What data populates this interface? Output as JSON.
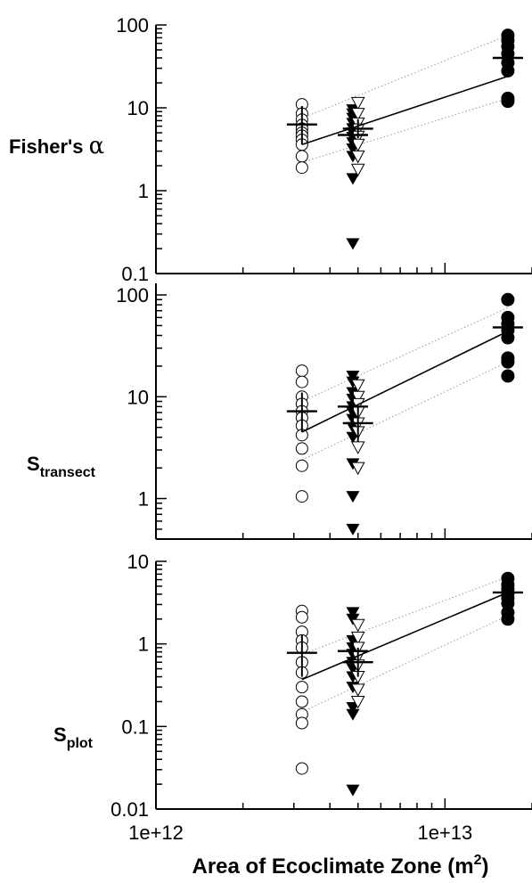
{
  "figure": {
    "xlabel": "Area of Ecoclimate Zone (m",
    "xlabel_sup": "2",
    "xlabel_close": ")"
  },
  "chart_data": [
    {
      "type": "scatter",
      "panel": "top",
      "ylabel": {
        "main": "Fisher's ",
        "greek": "α",
        "sub": ""
      },
      "xscale": "log",
      "yscale": "log",
      "xlim": [
        1000000000000.0,
        20000000000000.0
      ],
      "ylim": [
        0.1,
        100
      ],
      "yticks": [
        {
          "v": 0.1,
          "label": "0.1"
        },
        {
          "v": 1,
          "label": "1"
        },
        {
          "v": 10,
          "label": "10"
        },
        {
          "v": 100,
          "label": "100"
        }
      ],
      "groups": [
        {
          "marker": "open-circle",
          "x": 3200000000000.0,
          "values": [
            11,
            8.5,
            7.2,
            6.2,
            5.6,
            5,
            4.6,
            4.1,
            3.6,
            2.6,
            1.9
          ],
          "mean": 6.3,
          "ci": [
            3.6,
            10.5
          ]
        },
        {
          "marker": "filled-triangle",
          "x": 4800000000000.0,
          "values": [
            9.5,
            8.5,
            7.5,
            6.5,
            5.6,
            5,
            4.4,
            3.8,
            3.2,
            2.6,
            1.4,
            0.23
          ],
          "mean": 4.7,
          "ci": [
            3.6,
            6.4
          ]
        },
        {
          "marker": "open-triangle",
          "x": 5000000000000.0,
          "values": [
            11.5,
            8.5,
            6.5,
            5.5,
            4.5,
            3.6,
            2.6,
            1.8
          ],
          "mean": 5.6,
          "ci": [
            4.3,
            7.3
          ]
        },
        {
          "marker": "filled-circle",
          "x": 16500000000000.0,
          "values": [
            75,
            65,
            55,
            45,
            35,
            28,
            13,
            12
          ],
          "mean": 40,
          "ci": [
            24,
            68
          ]
        }
      ],
      "fit": {
        "x": [
          3200000000000.0,
          16500000000000.0
        ],
        "y": [
          3.6,
          24
        ]
      },
      "conf": [
        {
          "x": [
            3200000000000.0,
            16500000000000.0
          ],
          "y": [
            7.5,
            75
          ]
        },
        {
          "x": [
            3200000000000.0,
            16500000000000.0
          ],
          "y": [
            2.2,
            13
          ]
        }
      ]
    },
    {
      "type": "scatter",
      "panel": "middle",
      "ylabel": {
        "main": "S",
        "greek": "",
        "sub": "transect"
      },
      "xscale": "log",
      "yscale": "log",
      "xlim": [
        1000000000000.0,
        20000000000000.0
      ],
      "ylim": [
        0.4,
        130
      ],
      "yticks": [
        {
          "v": 1,
          "label": "1"
        },
        {
          "v": 10,
          "label": "10"
        },
        {
          "v": 100,
          "label": "100"
        }
      ],
      "groups": [
        {
          "marker": "open-circle",
          "x": 3200000000000.0,
          "values": [
            18,
            14,
            10,
            8.5,
            7.2,
            6.2,
            5.2,
            4.2,
            3.1,
            2.1,
            1.05
          ],
          "mean": 7.2,
          "ci": [
            4.5,
            11
          ]
        },
        {
          "marker": "filled-triangle",
          "x": 4800000000000.0,
          "values": [
            16,
            14,
            11,
            9.5,
            8,
            7,
            6,
            5,
            4,
            2.2,
            1.05,
            0.5
          ],
          "mean": 8,
          "ci": [
            5.8,
            13
          ]
        },
        {
          "marker": "open-triangle",
          "x": 5000000000000.0,
          "values": [
            13,
            10,
            8.5,
            7,
            5.5,
            4.5,
            3.2,
            2
          ],
          "mean": 5.5,
          "ci": [
            3.6,
            8
          ]
        },
        {
          "marker": "filled-circle",
          "x": 16500000000000.0,
          "values": [
            90,
            60,
            52,
            45,
            38,
            24,
            22,
            16
          ],
          "mean": 48,
          "ci": [
            34,
            65
          ]
        }
      ],
      "fit": {
        "x": [
          3200000000000.0,
          16500000000000.0
        ],
        "y": [
          4.5,
          44
        ]
      },
      "conf": [
        {
          "x": [
            3200000000000.0,
            16500000000000.0
          ],
          "y": [
            9,
            75
          ]
        },
        {
          "x": [
            3200000000000.0,
            16500000000000.0
          ],
          "y": [
            2.4,
            22
          ]
        }
      ]
    },
    {
      "type": "scatter",
      "panel": "bottom",
      "ylabel": {
        "main": "S",
        "greek": "",
        "sub": "plot"
      },
      "xlabel_visible": true,
      "xscale": "log",
      "yscale": "log",
      "xlim": [
        1000000000000.0,
        20000000000000.0
      ],
      "ylim": [
        0.01,
        10
      ],
      "xticks": [
        {
          "v": 1000000000000.0,
          "label": "1e+12"
        },
        {
          "v": 10000000000000.0,
          "label": "1e+13"
        }
      ],
      "yticks": [
        {
          "v": 0.01,
          "label": "0.01"
        },
        {
          "v": 0.1,
          "label": "0.1"
        },
        {
          "v": 1,
          "label": "1"
        },
        {
          "v": 10,
          "label": "10"
        }
      ],
      "groups": [
        {
          "marker": "open-circle",
          "x": 3200000000000.0,
          "values": [
            2.5,
            2.1,
            1.4,
            1.1,
            0.9,
            0.6,
            0.45,
            0.3,
            0.2,
            0.14,
            0.11,
            0.031
          ],
          "mean": 0.78,
          "ci": [
            0.4,
            1.3
          ]
        },
        {
          "marker": "filled-triangle",
          "x": 4800000000000.0,
          "values": [
            2.4,
            2,
            1.1,
            0.9,
            0.75,
            0.6,
            0.5,
            0.4,
            0.3,
            0.17,
            0.14,
            0.017
          ],
          "mean": 0.82,
          "ci": [
            0.55,
            1.15
          ]
        },
        {
          "marker": "open-triangle",
          "x": 5000000000000.0,
          "values": [
            1.7,
            1.2,
            0.9,
            0.7,
            0.55,
            0.4,
            0.28,
            0.2
          ],
          "mean": 0.6,
          "ci": [
            0.4,
            0.9
          ]
        },
        {
          "marker": "filled-circle",
          "x": 16500000000000.0,
          "values": [
            6.2,
            5.2,
            4.6,
            4.1,
            3.6,
            3.1,
            2.4,
            2
          ],
          "mean": 4.2,
          "ci": [
            3,
            5.6
          ]
        }
      ],
      "fit": {
        "x": [
          3200000000000.0,
          16500000000000.0
        ],
        "y": [
          0.37,
          4.2
        ]
      },
      "conf": [
        {
          "x": [
            3200000000000.0,
            16500000000000.0
          ],
          "y": [
            0.75,
            6.5
          ]
        },
        {
          "x": [
            3200000000000.0,
            16500000000000.0
          ],
          "y": [
            0.15,
            2.2
          ]
        }
      ]
    }
  ]
}
